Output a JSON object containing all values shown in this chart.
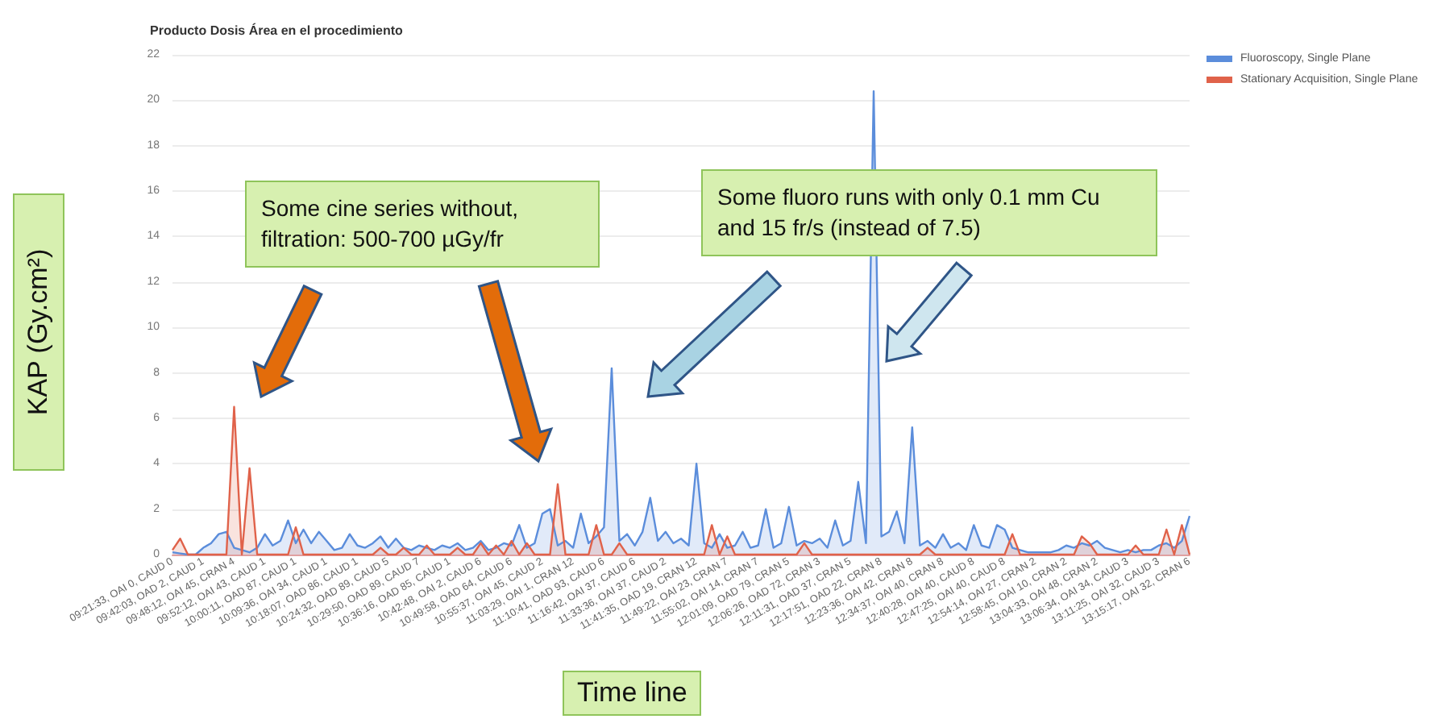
{
  "chart_data": {
    "type": "area",
    "title": "Producto Dosis Área en el procedimiento",
    "xlabel": "Time line",
    "ylabel": "KAP (Gy.cm²)",
    "categories": [
      "09:21:33, OAI 0, CAUD 0",
      null,
      null,
      null,
      "09:42:03, OAD 2, CAUD 1",
      null,
      null,
      null,
      "09:48:12, OAI 45, CRAN 4",
      null,
      null,
      null,
      "09:52:12, OAI 43, CAUD 1",
      null,
      null,
      null,
      "10:00:11, OAD 87, CAUD 1",
      null,
      null,
      null,
      "10:09:36, OAI 34, CAUD 1",
      null,
      null,
      null,
      "10:18:07, OAD 86, CAUD 1",
      null,
      null,
      null,
      "10:24:32, OAD 89, CAUD 5",
      null,
      null,
      null,
      "10:29:50, OAD 89, CAUD 7",
      null,
      null,
      null,
      "10:36:16, OAD 85, CAUD 1",
      null,
      null,
      null,
      "10:42:48, OAI 2, CAUD 6",
      null,
      null,
      null,
      "10:49:58, OAD 64, CAUD 6",
      null,
      null,
      null,
      "10:55:37, OAI 45, CAUD 2",
      null,
      null,
      null,
      "11:03:29, OAI 1, CRAN 12",
      null,
      null,
      null,
      "11:10:41, OAD 93, CAUD 6",
      null,
      null,
      null,
      "11:16:42, OAI 37, CAUD 6",
      null,
      null,
      null,
      "11:33:36, OAI 37, CAUD 2",
      null,
      null,
      null,
      "11:41:35, OAD 19, CRAN 12",
      null,
      null,
      null,
      "11:49:22, OAI 23, CRAN 7",
      null,
      null,
      null,
      "11:55:02, OAI 14, CRAN 7",
      null,
      null,
      null,
      "12:01:09, OAD 79, CRAN 5",
      null,
      null,
      null,
      "12:06:26, OAD 72, CRAN 3",
      null,
      null,
      null,
      "12:11:31, OAD 37, CRAN 5",
      null,
      null,
      null,
      "12:17:51, OAD 22, CRAN 8",
      null,
      null,
      null,
      "12:23:36, OAI 42, CRAN 8",
      null,
      null,
      null,
      "12:34:37, OAI 40, CRAN 8",
      null,
      null,
      null,
      "12:40:28, OAI 40, CAUD 8",
      null,
      null,
      null,
      "12:47:25, OAI 40, CAUD 8",
      null,
      null,
      null,
      "12:54:14, OAI 27, CRAN 2",
      null,
      null,
      null,
      "12:58:45, OAI 10, CRAN 2",
      null,
      null,
      null,
      "13:04:33, OAI 48, CRAN 2",
      null,
      null,
      null,
      "13:06:34, OAI 34, CAUD 3",
      null,
      null,
      null,
      "13:11:25, OAI 32, CAUD 3",
      null,
      null,
      null,
      "13:15:17, OAI 32, CRAN 6"
    ],
    "series": [
      {
        "name": "Fluoroscopy, Single Plane",
        "color": "#5b8ddb",
        "values": [
          0.1,
          0.05,
          0,
          0,
          0.3,
          0.5,
          0.9,
          1.0,
          0.3,
          0.2,
          0.1,
          0.3,
          0.9,
          0.4,
          0.6,
          1.5,
          0.5,
          1.1,
          0.5,
          1.0,
          0.6,
          0.2,
          0.3,
          0.9,
          0.4,
          0.3,
          0.5,
          0.8,
          0.3,
          0.7,
          0.3,
          0.2,
          0.4,
          0.3,
          0.2,
          0.4,
          0.3,
          0.5,
          0.2,
          0.3,
          0.6,
          0.2,
          0.3,
          0.5,
          0.4,
          1.3,
          0.3,
          0.5,
          1.8,
          2.0,
          0.4,
          0.6,
          0.3,
          1.8,
          0.5,
          0.8,
          1.2,
          8.2,
          0.6,
          0.9,
          0.4,
          1.0,
          2.5,
          0.6,
          1.0,
          0.5,
          0.7,
          0.4,
          4.0,
          0.5,
          0.3,
          0.9,
          0.3,
          0.4,
          1.0,
          0.3,
          0.4,
          2.0,
          0.3,
          0.5,
          2.1,
          0.4,
          0.6,
          0.5,
          0.7,
          0.3,
          1.5,
          0.4,
          0.6,
          3.2,
          0.5,
          20.4,
          0.8,
          1.0,
          1.9,
          0.5,
          5.6,
          0.4,
          0.6,
          0.3,
          0.9,
          0.3,
          0.5,
          0.2,
          1.3,
          0.4,
          0.3,
          1.3,
          1.1,
          0.3,
          0.2,
          0.1,
          0.1,
          0.1,
          0.1,
          0.2,
          0.4,
          0.3,
          0.5,
          0.4,
          0.6,
          0.3,
          0.2,
          0.1,
          0.2,
          0.1,
          0.2,
          0.2,
          0.4,
          0.5,
          0.3,
          0.6,
          1.7
        ]
      },
      {
        "name": "Stationary Acquisition, Single Plane",
        "color": "#e0624a",
        "values": [
          0.2,
          0.7,
          0,
          0,
          0,
          0,
          0,
          0,
          6.5,
          0,
          3.8,
          0,
          0,
          0,
          0,
          0,
          1.2,
          0,
          0,
          0,
          0,
          0,
          0,
          0,
          0,
          0,
          0,
          0.3,
          0,
          0,
          0.3,
          0,
          0,
          0.4,
          0,
          0,
          0,
          0.3,
          0,
          0,
          0.5,
          0,
          0.4,
          0,
          0.6,
          0,
          0.5,
          0,
          0,
          0,
          3.1,
          0,
          0,
          0,
          0,
          1.3,
          0,
          0,
          0.5,
          0,
          0,
          0,
          0,
          0,
          0,
          0,
          0,
          0,
          0,
          0,
          1.3,
          0,
          0.8,
          0,
          0,
          0,
          0,
          0,
          0,
          0,
          0,
          0,
          0.5,
          0,
          0,
          0,
          0,
          0,
          0,
          0,
          0,
          0,
          0,
          0,
          0,
          0,
          0,
          0,
          0.3,
          0,
          0,
          0,
          0,
          0,
          0,
          0,
          0,
          0,
          0,
          0.9,
          0,
          0,
          0,
          0,
          0,
          0,
          0,
          0,
          0.8,
          0.5,
          0,
          0,
          0,
          0,
          0,
          0.4,
          0,
          0,
          0,
          1.1,
          0,
          1.3,
          0
        ]
      }
    ],
    "ylim": [
      0,
      22
    ],
    "yticks": [
      0,
      2,
      4,
      6,
      8,
      10,
      12,
      14,
      16,
      18,
      20,
      22
    ],
    "grid": "y",
    "legend": "top right",
    "marker": "none",
    "line_style": "solid",
    "annotations": [
      "Some cine series without, filtration: 500-700 µGy/fr",
      "Some fluoro runs with only 0.1 mm Cu and 15 fr/s (instead of 7.5)"
    ]
  }
}
